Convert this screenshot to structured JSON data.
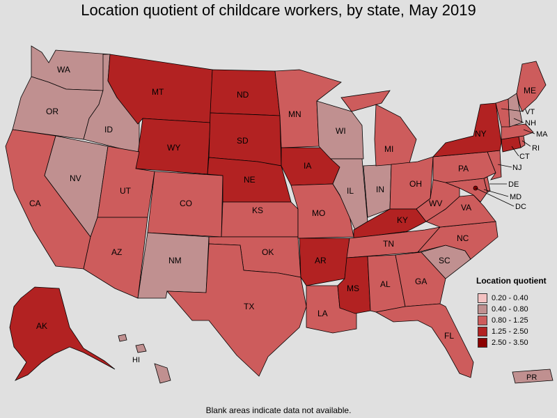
{
  "title": "Location quotient of childcare workers, by state, May 2019",
  "legend": {
    "title": "Location quotient",
    "bins": [
      {
        "label": "0.20 - 0.40",
        "color": "#f4c2c2"
      },
      {
        "label": "0.40 - 0.80",
        "color": "#c09090"
      },
      {
        "label": "0.80 - 1.25",
        "color": "#cd5c5c"
      },
      {
        "label": "1.25 - 2.50",
        "color": "#b22222"
      },
      {
        "label": "2.50 - 3.50",
        "color": "#8b0000"
      }
    ]
  },
  "states": {
    "WA": {
      "bin": "0.40 - 0.80"
    },
    "OR": {
      "bin": "0.40 - 0.80"
    },
    "CA": {
      "bin": "0.80 - 1.25"
    },
    "NV": {
      "bin": "0.40 - 0.80"
    },
    "ID": {
      "bin": "0.40 - 0.80"
    },
    "MT": {
      "bin": "1.25 - 2.50"
    },
    "WY": {
      "bin": "1.25 - 2.50"
    },
    "UT": {
      "bin": "0.80 - 1.25"
    },
    "AZ": {
      "bin": "0.80 - 1.25"
    },
    "CO": {
      "bin": "0.80 - 1.25"
    },
    "NM": {
      "bin": "0.40 - 0.80"
    },
    "ND": {
      "bin": "1.25 - 2.50"
    },
    "SD": {
      "bin": "1.25 - 2.50"
    },
    "NE": {
      "bin": "1.25 - 2.50"
    },
    "KS": {
      "bin": "0.80 - 1.25"
    },
    "OK": {
      "bin": "0.80 - 1.25"
    },
    "TX": {
      "bin": "0.80 - 1.25"
    },
    "MN": {
      "bin": "0.80 - 1.25"
    },
    "IA": {
      "bin": "1.25 - 2.50"
    },
    "MO": {
      "bin": "0.80 - 1.25"
    },
    "AR": {
      "bin": "1.25 - 2.50"
    },
    "LA": {
      "bin": "0.80 - 1.25"
    },
    "WI": {
      "bin": "0.40 - 0.80"
    },
    "IL": {
      "bin": "0.40 - 0.80"
    },
    "MI": {
      "bin": "0.80 - 1.25"
    },
    "IN": {
      "bin": "0.40 - 0.80"
    },
    "OH": {
      "bin": "0.80 - 1.25"
    },
    "KY": {
      "bin": "1.25 - 2.50"
    },
    "TN": {
      "bin": "0.80 - 1.25"
    },
    "MS": {
      "bin": "1.25 - 2.50"
    },
    "AL": {
      "bin": "0.80 - 1.25"
    },
    "GA": {
      "bin": "0.80 - 1.25"
    },
    "FL": {
      "bin": "0.80 - 1.25"
    },
    "SC": {
      "bin": "0.40 - 0.80"
    },
    "NC": {
      "bin": "0.80 - 1.25"
    },
    "VA": {
      "bin": "0.80 - 1.25"
    },
    "WV": {
      "bin": "0.80 - 1.25"
    },
    "PA": {
      "bin": "0.80 - 1.25"
    },
    "NY": {
      "bin": "1.25 - 2.50"
    },
    "VT": {
      "bin": "0.80 - 1.25"
    },
    "NH": {
      "bin": "0.40 - 0.80"
    },
    "ME": {
      "bin": "0.80 - 1.25"
    },
    "MA": {
      "bin": "0.80 - 1.25"
    },
    "RI": {
      "bin": "0.80 - 1.25"
    },
    "CT": {
      "bin": "1.25 - 2.50"
    },
    "NJ": {
      "bin": "0.80 - 1.25"
    },
    "DE": {
      "bin": "0.80 - 1.25"
    },
    "MD": {
      "bin": "0.80 - 1.25"
    },
    "DC": {
      "bin": "2.50 - 3.50"
    },
    "AK": {
      "bin": "1.25 - 2.50"
    },
    "HI": {
      "bin": "0.40 - 0.80"
    },
    "PR": {
      "bin": "0.40 - 0.80"
    }
  },
  "footnote": "Blank areas indicate data not available."
}
